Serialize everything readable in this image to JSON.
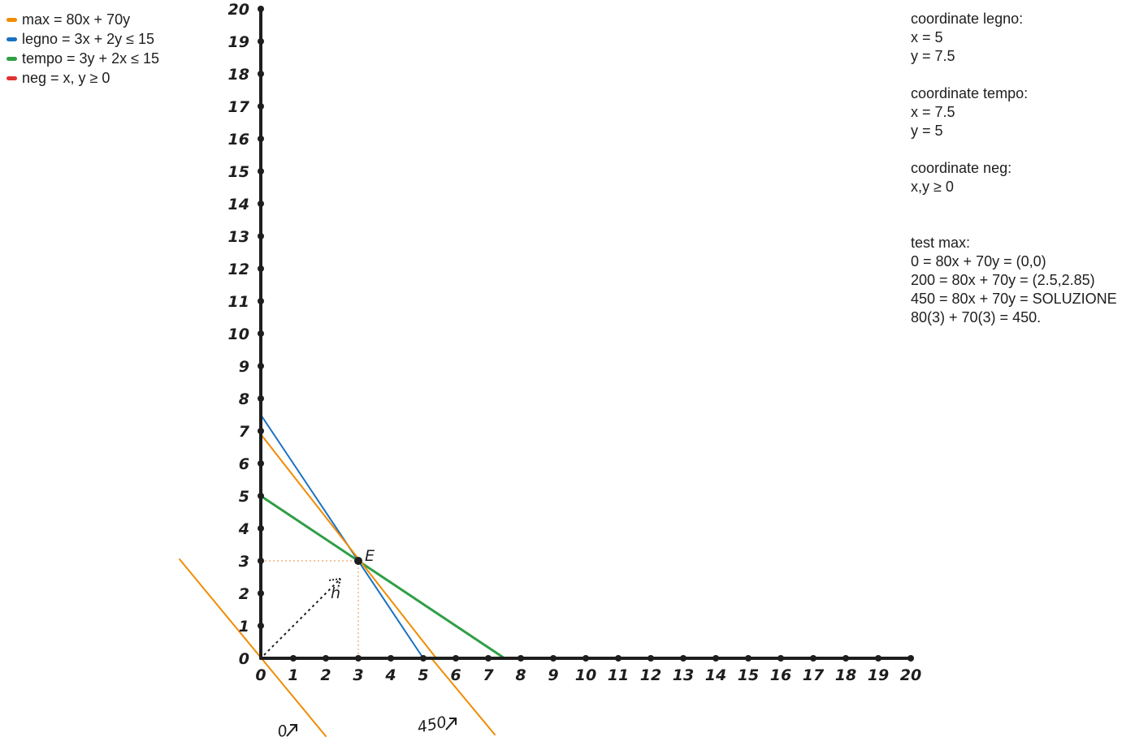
{
  "legend": [
    {
      "label": "max = 80x + 70y",
      "color": "#f08c00"
    },
    {
      "label": "legno = 3x + 2y ≤ 15",
      "color": "#1971c2"
    },
    {
      "label": "tempo = 3y + 2x ≤ 15",
      "color": "#2f9e44"
    },
    {
      "label": "neg = x, y ≥ 0",
      "color": "#e03131"
    }
  ],
  "notes": {
    "legno": [
      "coordinate legno:",
      "x = 5",
      "y = 7.5"
    ],
    "tempo": [
      "coordinate tempo:",
      "x = 7.5",
      "y = 5"
    ],
    "neg": [
      "coordinate neg:",
      "x,y ≥ 0"
    ],
    "test": [
      "test max:",
      "0 = 80x + 70y = (0,0)",
      "200 = 80x + 70y = (2.5,2.85)",
      "450 = 80x + 70y = SOLUZIONE",
      "80(3) + 70(3) = 450."
    ]
  },
  "chart_data": {
    "type": "line",
    "title": "",
    "xlabel": "",
    "ylabel": "",
    "xlim": [
      0,
      20
    ],
    "ylim": [
      0,
      20
    ],
    "x_ticks": [
      "0",
      "1",
      "2",
      "3",
      "4",
      "5",
      "6",
      "7",
      "8",
      "9",
      "10",
      "11",
      "12",
      "13",
      "14",
      "15",
      "16",
      "17",
      "18",
      "19",
      "20"
    ],
    "y_ticks": [
      "0",
      "1",
      "2",
      "3",
      "4",
      "5",
      "6",
      "7",
      "8",
      "9",
      "10",
      "11",
      "12",
      "13",
      "14",
      "15",
      "16",
      "17",
      "18",
      "19",
      "20"
    ],
    "grid": false,
    "series": [
      {
        "name": "legno",
        "color": "#1971c2",
        "x": [
          0,
          5
        ],
        "y": [
          7.5,
          0
        ]
      },
      {
        "name": "tempo",
        "color": "#2f9e44",
        "x": [
          0,
          7.5
        ],
        "y": [
          5,
          0
        ]
      },
      {
        "name": "max",
        "color": "#f08c00",
        "x": [
          0,
          5.4
        ],
        "y": [
          6.9,
          0
        ]
      },
      {
        "name": "max",
        "color": "#f08c00",
        "x": [
          -2.5,
          2
        ],
        "y": [
          3.05,
          -2.4
        ]
      },
      {
        "name": "max",
        "color": "#f08c00",
        "x": [
          5.25,
          7.2
        ],
        "y": [
          0,
          -2.35
        ]
      }
    ],
    "points": [
      {
        "label": "E",
        "x": 3,
        "y": 3
      },
      {
        "label": "h",
        "x": 2.6,
        "y": 2.6
      }
    ],
    "annotations": [
      {
        "text": "0",
        "x": 0.7,
        "y": -2.4
      },
      {
        "text": "450",
        "x": 5.3,
        "y": -2.2
      }
    ]
  }
}
